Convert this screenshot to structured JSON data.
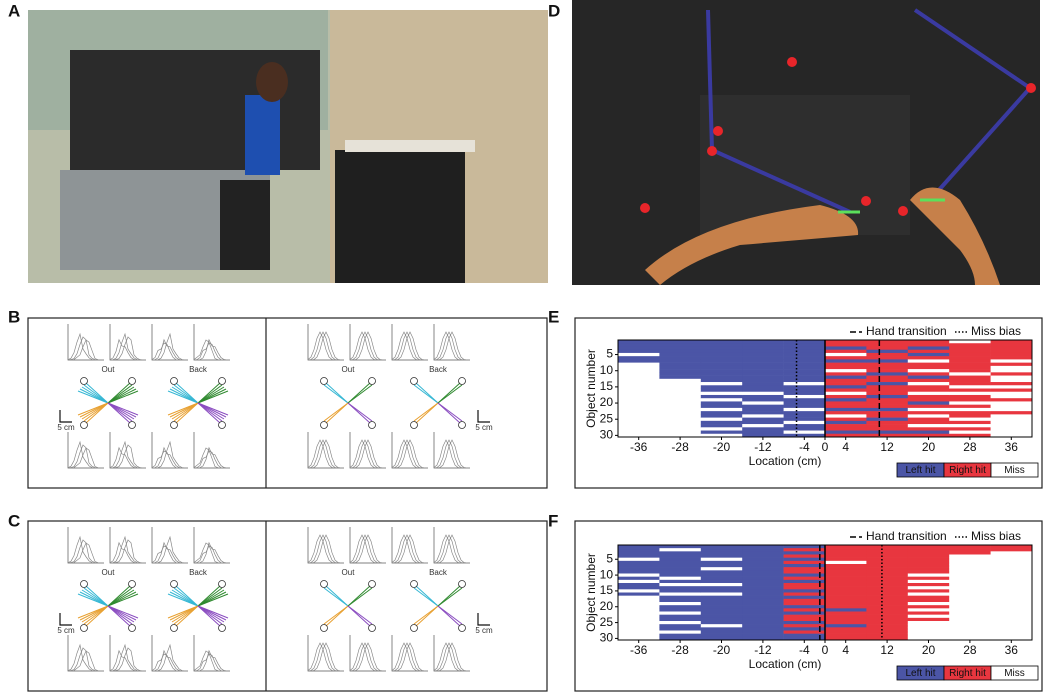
{
  "panel_labels": [
    "A",
    "B",
    "C",
    "D",
    "E",
    "F"
  ],
  "trajectory_panels": [
    {
      "texts": [
        "Out",
        "Back",
        "5 cm"
      ]
    },
    {
      "texts": [
        "Out",
        "Back",
        "5 cm"
      ]
    }
  ],
  "chart_data": [
    {
      "type": "heatmap",
      "x_label": "Location (cm)",
      "y_label": "Object number",
      "xlim": [
        -40,
        40
      ],
      "xticks": [
        -36,
        -28,
        -20,
        -12,
        -4,
        0,
        4,
        12,
        20,
        28,
        36
      ],
      "ylim": [
        0.5,
        30.5
      ],
      "yticks": [
        5,
        10,
        15,
        20,
        25,
        30
      ],
      "x": [
        -36,
        -28,
        -20,
        -12,
        -4,
        4,
        12,
        20,
        28,
        36
      ],
      "series": [
        {
          "name": "Left hit",
          "color": "#4b55a6"
        },
        {
          "name": "Right hit",
          "color": "#e8363f"
        },
        {
          "name": "Miss",
          "color": "#ffffff"
        }
      ],
      "values": [
        [
          0,
          0,
          0,
          0,
          2,
          0,
          0,
          2,
          2,
          2,
          2,
          2,
          2,
          2,
          2,
          2,
          2,
          2,
          2,
          2,
          2,
          2,
          2,
          2,
          2,
          2,
          2,
          2,
          2,
          2
        ],
        [
          0,
          0,
          0,
          0,
          0,
          0,
          0,
          0,
          0,
          0,
          0,
          0,
          2,
          2,
          2,
          2,
          2,
          2,
          2,
          2,
          2,
          2,
          2,
          2,
          2,
          2,
          2,
          2,
          2,
          2
        ],
        [
          0,
          0,
          0,
          0,
          0,
          0,
          0,
          0,
          0,
          0,
          0,
          0,
          0,
          2,
          0,
          0,
          2,
          0,
          2,
          0,
          0,
          2,
          0,
          0,
          2,
          0,
          0,
          2,
          0,
          2
        ],
        [
          0,
          0,
          0,
          0,
          0,
          0,
          0,
          0,
          0,
          0,
          0,
          0,
          0,
          0,
          0,
          0,
          2,
          0,
          0,
          2,
          0,
          0,
          0,
          2,
          0,
          0,
          2,
          0,
          0,
          0
        ],
        [
          0,
          0,
          0,
          0,
          0,
          0,
          0,
          0,
          0,
          0,
          0,
          0,
          0,
          2,
          0,
          0,
          0,
          2,
          0,
          0,
          0,
          2,
          0,
          0,
          0,
          2,
          0,
          0,
          2,
          0
        ],
        [
          1,
          1,
          0,
          1,
          2,
          1,
          0,
          1,
          1,
          2,
          1,
          0,
          1,
          1,
          0,
          1,
          2,
          1,
          0,
          1,
          1,
          0,
          1,
          2,
          1,
          0,
          1,
          1,
          0,
          1
        ],
        [
          1,
          1,
          1,
          0,
          1,
          1,
          0,
          1,
          1,
          1,
          0,
          1,
          1,
          0,
          1,
          1,
          1,
          0,
          1,
          1,
          1,
          0,
          1,
          1,
          0,
          1,
          1,
          1,
          0,
          1
        ],
        [
          1,
          1,
          0,
          1,
          0,
          1,
          2,
          1,
          1,
          2,
          1,
          0,
          1,
          2,
          1,
          1,
          2,
          1,
          1,
          0,
          1,
          2,
          1,
          2,
          1,
          1,
          2,
          1,
          0,
          1
        ],
        [
          2,
          1,
          1,
          1,
          1,
          1,
          1,
          1,
          1,
          1,
          2,
          1,
          1,
          1,
          2,
          1,
          2,
          1,
          1,
          2,
          1,
          2,
          1,
          1,
          2,
          1,
          2,
          1,
          2,
          1
        ],
        [
          1,
          1,
          1,
          1,
          1,
          1,
          2,
          1,
          2,
          2,
          1,
          2,
          2,
          1,
          2,
          1,
          2,
          2,
          1,
          2,
          2,
          2,
          1,
          2,
          2,
          2,
          2,
          2,
          2,
          2
        ]
      ],
      "lines": [
        {
          "name": "Hand transition",
          "x": 10.5,
          "style": "dashed"
        },
        {
          "name": "Miss bias",
          "x": -5.5,
          "style": "dotted"
        }
      ]
    },
    {
      "type": "heatmap",
      "x_label": "Location (cm)",
      "y_label": "Object number",
      "xlim": [
        -40,
        40
      ],
      "xticks": [
        -36,
        -28,
        -20,
        -12,
        -4,
        0,
        4,
        12,
        20,
        28,
        36
      ],
      "ylim": [
        0.5,
        30.5
      ],
      "yticks": [
        5,
        10,
        15,
        20,
        25,
        30
      ],
      "x": [
        -36,
        -28,
        -20,
        -12,
        -4,
        4,
        12,
        20,
        28,
        36
      ],
      "series": [
        {
          "name": "Left hit",
          "color": "#4b55a6"
        },
        {
          "name": "Right hit",
          "color": "#e8363f"
        },
        {
          "name": "Miss",
          "color": "#ffffff"
        }
      ],
      "values": [
        [
          0,
          0,
          0,
          0,
          2,
          0,
          0,
          0,
          0,
          2,
          0,
          2,
          0,
          0,
          2,
          0,
          2,
          2,
          2,
          2,
          2,
          2,
          2,
          2,
          2,
          2,
          2,
          2,
          2,
          2
        ],
        [
          0,
          2,
          0,
          0,
          0,
          0,
          0,
          0,
          0,
          0,
          2,
          0,
          2,
          0,
          0,
          2,
          0,
          0,
          2,
          0,
          0,
          2,
          0,
          0,
          2,
          0,
          0,
          2,
          0,
          0
        ],
        [
          0,
          0,
          0,
          0,
          2,
          0,
          0,
          2,
          0,
          0,
          0,
          0,
          2,
          0,
          0,
          2,
          0,
          0,
          0,
          0,
          0,
          0,
          0,
          0,
          0,
          2,
          0,
          0,
          0,
          0
        ],
        [
          0,
          0,
          0,
          0,
          0,
          0,
          0,
          0,
          0,
          0,
          0,
          0,
          0,
          0,
          0,
          0,
          0,
          0,
          0,
          0,
          0,
          0,
          0,
          0,
          0,
          0,
          0,
          0,
          0,
          0
        ],
        [
          0,
          1,
          0,
          1,
          0,
          1,
          0,
          1,
          1,
          0,
          1,
          0,
          1,
          1,
          0,
          1,
          0,
          1,
          1,
          0,
          1,
          0,
          1,
          1,
          0,
          1,
          0,
          1,
          0,
          0
        ],
        [
          1,
          1,
          1,
          1,
          1,
          2,
          1,
          1,
          1,
          1,
          1,
          1,
          1,
          1,
          1,
          1,
          1,
          1,
          1,
          1,
          0,
          1,
          1,
          1,
          1,
          0,
          1,
          1,
          1,
          1
        ],
        [
          1,
          1,
          1,
          1,
          1,
          1,
          1,
          1,
          1,
          1,
          1,
          1,
          1,
          1,
          1,
          1,
          1,
          1,
          1,
          1,
          1,
          1,
          1,
          1,
          1,
          1,
          1,
          1,
          1,
          1
        ],
        [
          1,
          1,
          1,
          1,
          1,
          1,
          1,
          1,
          1,
          2,
          1,
          2,
          1,
          2,
          1,
          2,
          1,
          1,
          2,
          1,
          2,
          1,
          2,
          1,
          2,
          2,
          2,
          2,
          2,
          2
        ],
        [
          1,
          1,
          1,
          2,
          2,
          2,
          2,
          2,
          2,
          2,
          2,
          2,
          2,
          2,
          2,
          2,
          2,
          2,
          2,
          2,
          2,
          2,
          2,
          2,
          2,
          2,
          2,
          2,
          2,
          2
        ],
        [
          1,
          1,
          2,
          2,
          2,
          2,
          2,
          2,
          2,
          2,
          2,
          2,
          2,
          2,
          2,
          2,
          2,
          2,
          2,
          2,
          2,
          2,
          2,
          2,
          2,
          2,
          2,
          2,
          2,
          2
        ]
      ],
      "lines": [
        {
          "name": "Hand transition",
          "x": -1,
          "style": "dashed"
        },
        {
          "name": "Miss bias",
          "x": 11,
          "style": "dotted"
        }
      ]
    }
  ]
}
